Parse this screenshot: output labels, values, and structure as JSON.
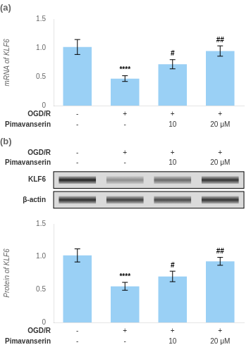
{
  "chart_data": [
    {
      "type": "bar",
      "title": "(a)",
      "ylabel": "mRNA of KLF6",
      "categories": [
        [
          "-",
          "-"
        ],
        [
          "+",
          "-"
        ],
        [
          "+",
          "10"
        ],
        [
          "+",
          "20 μM"
        ]
      ],
      "category_rows": [
        "OGD/R",
        "Pimavanserin"
      ],
      "values": [
        1.02,
        0.47,
        0.72,
        0.95
      ],
      "errors": [
        0.13,
        0.05,
        0.08,
        0.09
      ],
      "annotations": [
        null,
        "****",
        "#",
        "##"
      ],
      "ylim": [
        0,
        1.5
      ],
      "yticks": [
        0,
        0.5,
        {
          "value": 1.0,
          "label": "1.0"
        },
        1.5
      ],
      "grid": false,
      "legend": false
    },
    {
      "type": "heatmap",
      "title": "(b)",
      "categories": [
        [
          "-",
          "-"
        ],
        [
          "+",
          "-"
        ],
        [
          "+",
          "10"
        ],
        [
          "+",
          "20 μM"
        ]
      ],
      "category_rows": [
        "OGD/R",
        "Pimavanserin"
      ],
      "rows": [
        "KLF6",
        "β-actin"
      ],
      "cells": [
        [
          0.85,
          0.35,
          0.52,
          0.78
        ],
        [
          0.8,
          0.72,
          0.68,
          0.78
        ]
      ],
      "grid": false,
      "legend": false
    },
    {
      "type": "bar",
      "ylabel": "Protein of KLF6",
      "categories": [
        [
          "-",
          "-"
        ],
        [
          "+",
          "-"
        ],
        [
          "+",
          "10"
        ],
        [
          "+",
          "20 μM"
        ]
      ],
      "category_rows": [
        "OGD/R",
        "Pimavanserin"
      ],
      "values": [
        1.02,
        0.55,
        0.7,
        0.93
      ],
      "errors": [
        0.1,
        0.06,
        0.08,
        0.06
      ],
      "annotations": [
        null,
        "****",
        "#",
        "##"
      ],
      "ylim": [
        0,
        1.5
      ],
      "yticks": [
        0,
        0.5,
        {
          "value": 1.0,
          "label": "1.0"
        },
        1.5
      ],
      "grid": false,
      "legend": false
    }
  ]
}
